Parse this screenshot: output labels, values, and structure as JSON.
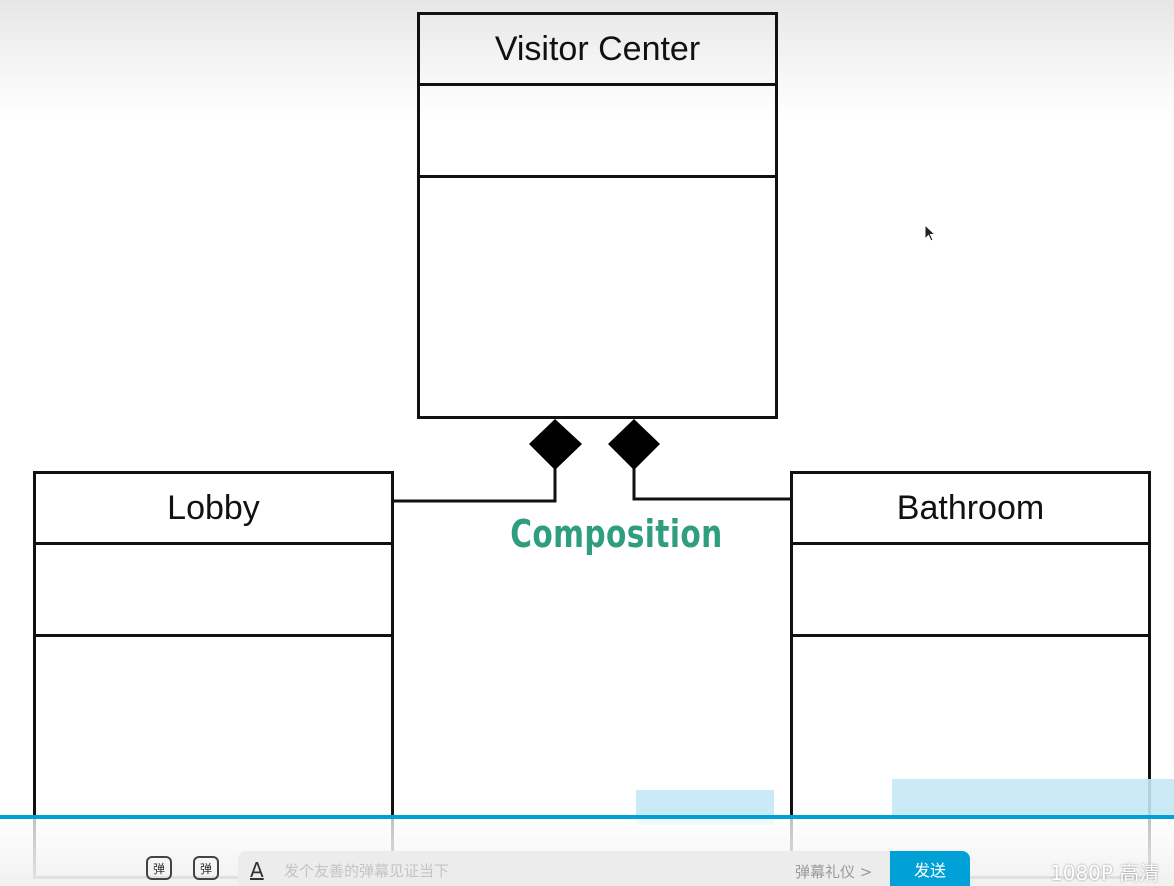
{
  "diagram": {
    "classes": {
      "visitor_center": "Visitor Center",
      "lobby": "Lobby",
      "bathroom": "Bathroom"
    },
    "relationship_label": "Composition",
    "label_color": "#2f9e7e"
  },
  "player": {
    "danmaku_toggle_icon": "danmaku-toggle-icon",
    "danmaku_settings_icon": "danmaku-settings-icon",
    "danmaku_toggle_glyph": "弹",
    "danmaku_settings_glyph": "弹",
    "font_icon_glyph": "A",
    "danmaku_placeholder": "发个友善的弹幕见证当下",
    "etiquette_label": "弹幕礼仪 >",
    "send_label": "发送",
    "quality_label": "1080P 高清",
    "accent_color": "#00a1d6"
  }
}
